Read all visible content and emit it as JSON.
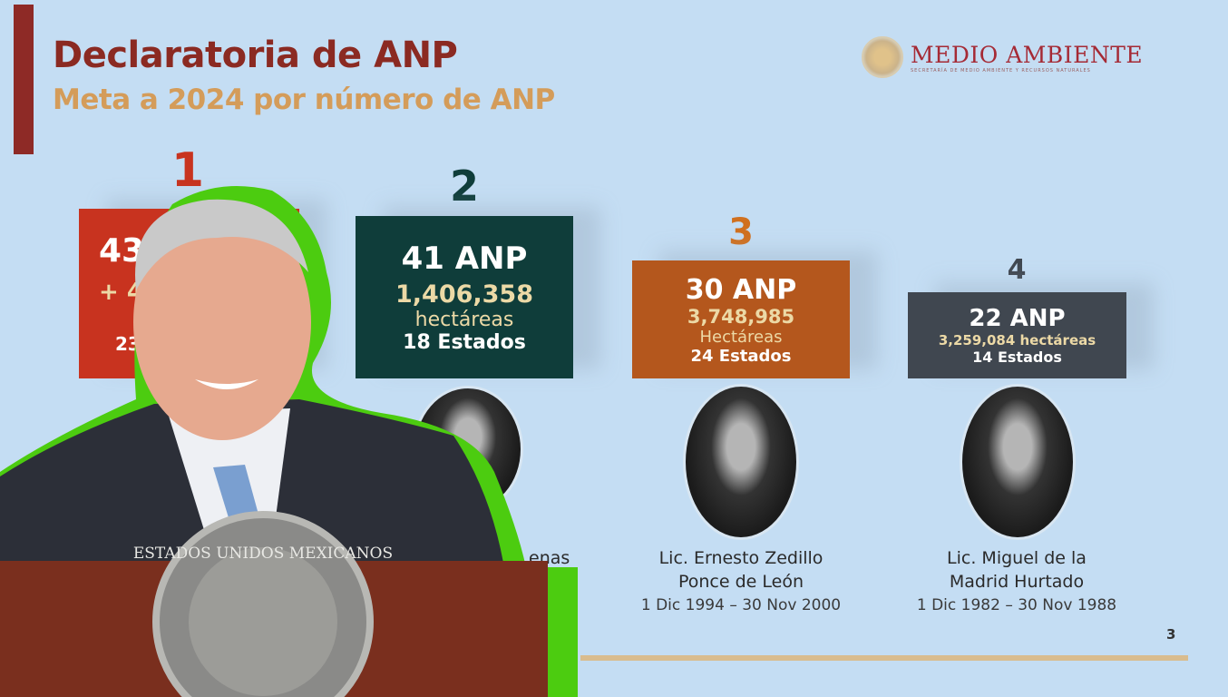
{
  "slide": {
    "title": "Declaratoria de ANP",
    "subtitle": "Meta a 2024 por número de ANP",
    "logo": {
      "main": "MEDIO AMBIENTE",
      "sub": "SECRETARÍA DE MEDIO AMBIENTE Y RECURSOS NATURALES",
      "color": "#a52a35"
    },
    "page_number": "3",
    "rankings": [
      {
        "rank": "1",
        "anp": "43",
        "added": "+ 4",
        "states": "23",
        "color": "#c8331f"
      },
      {
        "rank": "2",
        "anp": "41 ANP",
        "hectares": "1,406,358",
        "hectares_label": "hectáreas",
        "states": "18 Estados",
        "color": "#0f3d3a",
        "name_fragment": "enas"
      },
      {
        "rank": "3",
        "anp": "30 ANP",
        "hectares": "3,748,985",
        "hectares_label": "Hectáreas",
        "states": "24 Estados",
        "color": "#b4571d",
        "name_line1": "Lic. Ernesto Zedillo",
        "name_line2": "Ponce de León",
        "term": "1 Dic 1994 – 30 Nov 2000"
      },
      {
        "rank": "4",
        "anp": "22 ANP",
        "hectares": "3,259,084 hectáreas",
        "states": "14 Estados",
        "color": "#404750",
        "name_line1": "Lic. Miguel de la",
        "name_line2": "Madrid Hurtado",
        "term": "1 Dic 1982 – 30 Nov 1988"
      }
    ]
  },
  "overlay": {
    "podium_seal_text": "ESTADOS UNIDOS MEXICANOS",
    "outline_color": "#4ccc10"
  }
}
